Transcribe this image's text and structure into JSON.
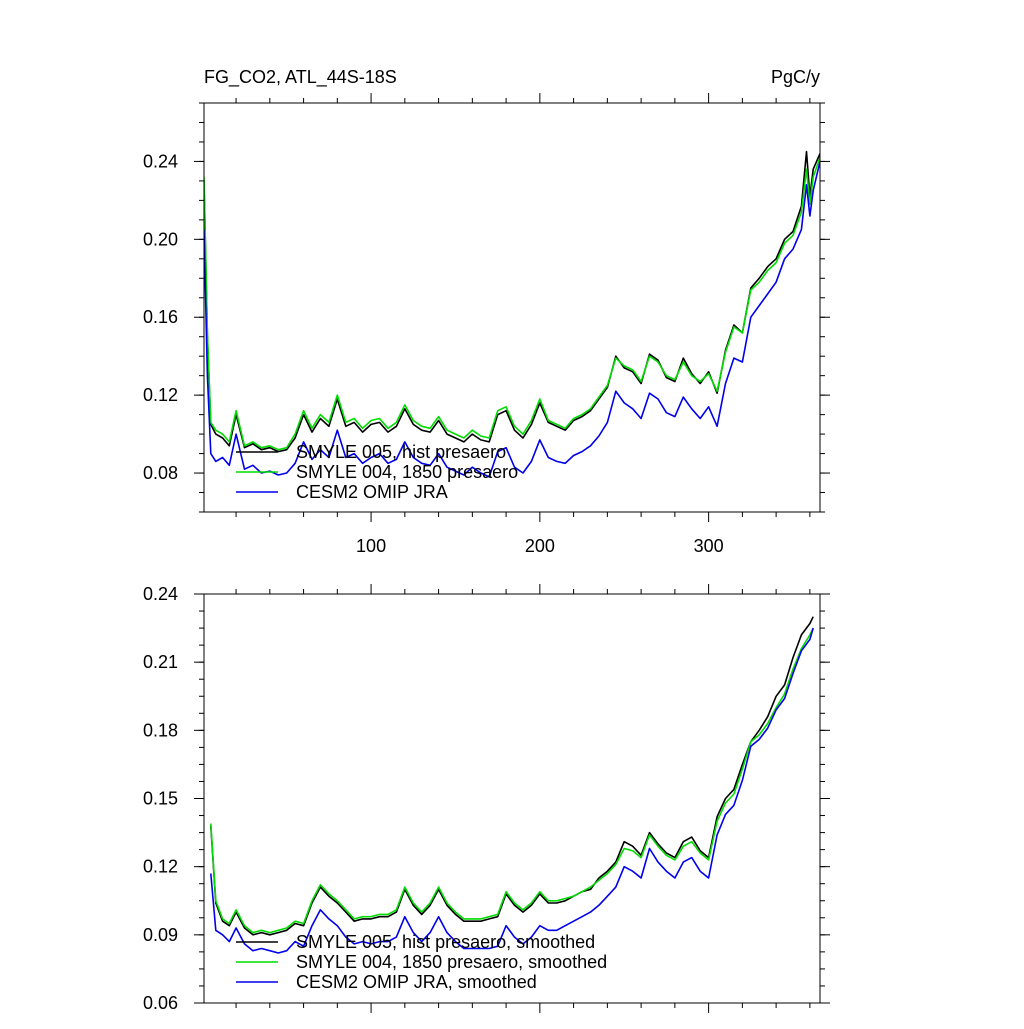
{
  "chart_data": [
    {
      "type": "line",
      "title": "FG_CO2, ATL_44S-18S",
      "units": "PgC/y",
      "xlim": [
        1,
        366
      ],
      "ylim": [
        0.06,
        0.27
      ],
      "x_ticks": [
        100,
        200,
        300
      ],
      "y_ticks": [
        0.08,
        0.12,
        0.16,
        0.2,
        0.24
      ],
      "y_tick_labels": [
        "0.08",
        "0.12",
        "0.16",
        "0.20",
        "0.24"
      ],
      "legend_position": "bottom-left",
      "series": [
        {
          "name": "SMYLE 005, hist presaero",
          "color": "#000000",
          "x": [
            1,
            3,
            5,
            8,
            12,
            16,
            20,
            25,
            30,
            35,
            40,
            45,
            50,
            55,
            60,
            65,
            70,
            75,
            80,
            85,
            90,
            95,
            100,
            105,
            110,
            115,
            120,
            125,
            130,
            135,
            140,
            145,
            150,
            155,
            160,
            165,
            170,
            175,
            180,
            185,
            190,
            195,
            200,
            205,
            210,
            215,
            220,
            225,
            230,
            235,
            240,
            245,
            250,
            255,
            260,
            265,
            270,
            275,
            280,
            285,
            290,
            295,
            300,
            305,
            310,
            315,
            320,
            325,
            330,
            335,
            340,
            345,
            350,
            355,
            358,
            360,
            362,
            366
          ],
          "values": [
            0.23,
            0.15,
            0.105,
            0.1,
            0.098,
            0.094,
            0.11,
            0.093,
            0.095,
            0.092,
            0.093,
            0.091,
            0.092,
            0.098,
            0.11,
            0.101,
            0.108,
            0.104,
            0.118,
            0.104,
            0.106,
            0.101,
            0.105,
            0.106,
            0.101,
            0.104,
            0.113,
            0.105,
            0.102,
            0.101,
            0.107,
            0.1,
            0.098,
            0.096,
            0.1,
            0.097,
            0.096,
            0.11,
            0.112,
            0.102,
            0.098,
            0.105,
            0.116,
            0.106,
            0.104,
            0.102,
            0.107,
            0.109,
            0.112,
            0.118,
            0.124,
            0.14,
            0.134,
            0.132,
            0.126,
            0.141,
            0.138,
            0.129,
            0.127,
            0.139,
            0.131,
            0.126,
            0.132,
            0.121,
            0.143,
            0.156,
            0.152,
            0.175,
            0.18,
            0.186,
            0.19,
            0.2,
            0.204,
            0.217,
            0.245,
            0.222,
            0.236,
            0.244
          ]
        },
        {
          "name": "SMYLE 004, 1850 presaero",
          "color": "#00dd00",
          "x": [
            1,
            3,
            5,
            8,
            12,
            16,
            20,
            25,
            30,
            35,
            40,
            45,
            50,
            55,
            60,
            65,
            70,
            75,
            80,
            85,
            90,
            95,
            100,
            105,
            110,
            115,
            120,
            125,
            130,
            135,
            140,
            145,
            150,
            155,
            160,
            165,
            170,
            175,
            180,
            185,
            190,
            195,
            200,
            205,
            210,
            215,
            220,
            225,
            230,
            235,
            240,
            245,
            250,
            255,
            260,
            265,
            270,
            275,
            280,
            285,
            290,
            295,
            300,
            305,
            310,
            315,
            320,
            325,
            330,
            335,
            340,
            345,
            350,
            355,
            358,
            360,
            362,
            366
          ],
          "values": [
            0.232,
            0.152,
            0.106,
            0.102,
            0.1,
            0.096,
            0.112,
            0.094,
            0.096,
            0.093,
            0.094,
            0.092,
            0.093,
            0.1,
            0.112,
            0.103,
            0.11,
            0.106,
            0.12,
            0.106,
            0.108,
            0.103,
            0.107,
            0.108,
            0.103,
            0.106,
            0.115,
            0.107,
            0.104,
            0.103,
            0.109,
            0.102,
            0.1,
            0.098,
            0.102,
            0.099,
            0.098,
            0.112,
            0.114,
            0.104,
            0.1,
            0.107,
            0.118,
            0.107,
            0.105,
            0.103,
            0.108,
            0.11,
            0.113,
            0.119,
            0.125,
            0.139,
            0.135,
            0.133,
            0.127,
            0.14,
            0.137,
            0.13,
            0.128,
            0.137,
            0.13,
            0.127,
            0.131,
            0.122,
            0.142,
            0.155,
            0.152,
            0.174,
            0.178,
            0.184,
            0.188,
            0.198,
            0.202,
            0.214,
            0.236,
            0.218,
            0.232,
            0.242
          ]
        },
        {
          "name": "CESM2 OMIP JRA",
          "color": "#0000ee",
          "x": [
            1,
            3,
            5,
            8,
            12,
            16,
            20,
            25,
            30,
            35,
            40,
            45,
            50,
            55,
            60,
            65,
            70,
            75,
            80,
            85,
            90,
            95,
            100,
            105,
            110,
            115,
            120,
            125,
            130,
            135,
            140,
            145,
            150,
            155,
            160,
            165,
            170,
            175,
            180,
            185,
            190,
            195,
            200,
            205,
            210,
            215,
            220,
            225,
            230,
            235,
            240,
            245,
            250,
            255,
            260,
            265,
            270,
            275,
            280,
            285,
            290,
            295,
            300,
            305,
            310,
            315,
            320,
            325,
            330,
            335,
            340,
            345,
            350,
            355,
            358,
            360,
            362,
            366
          ],
          "values": [
            0.205,
            0.13,
            0.09,
            0.086,
            0.088,
            0.084,
            0.1,
            0.082,
            0.084,
            0.08,
            0.081,
            0.079,
            0.08,
            0.085,
            0.096,
            0.087,
            0.092,
            0.088,
            0.102,
            0.088,
            0.09,
            0.085,
            0.088,
            0.09,
            0.085,
            0.087,
            0.096,
            0.088,
            0.085,
            0.084,
            0.09,
            0.083,
            0.081,
            0.079,
            0.083,
            0.08,
            0.078,
            0.091,
            0.093,
            0.083,
            0.08,
            0.086,
            0.097,
            0.088,
            0.086,
            0.085,
            0.089,
            0.091,
            0.094,
            0.099,
            0.106,
            0.122,
            0.116,
            0.113,
            0.108,
            0.121,
            0.118,
            0.111,
            0.109,
            0.119,
            0.113,
            0.108,
            0.114,
            0.104,
            0.126,
            0.139,
            0.137,
            0.16,
            0.166,
            0.172,
            0.178,
            0.19,
            0.195,
            0.205,
            0.228,
            0.212,
            0.225,
            0.24
          ]
        }
      ]
    },
    {
      "type": "line",
      "title": "",
      "units": "",
      "xlim": [
        1,
        366
      ],
      "ylim": [
        0.06,
        0.24
      ],
      "x_ticks": [
        100,
        200,
        300
      ],
      "y_ticks": [
        0.06,
        0.09,
        0.12,
        0.15,
        0.18,
        0.21,
        0.24
      ],
      "y_tick_labels": [
        "0.06",
        "0.09",
        "0.12",
        "0.15",
        "0.18",
        "0.21",
        "0.24"
      ],
      "legend_position": "bottom-left",
      "series": [
        {
          "name": "SMYLE 005, hist presaero, smoothed",
          "color": "#000000",
          "x": [
            5,
            8,
            12,
            16,
            20,
            25,
            30,
            35,
            40,
            45,
            50,
            55,
            60,
            65,
            70,
            75,
            80,
            85,
            90,
            95,
            100,
            105,
            110,
            115,
            120,
            125,
            130,
            135,
            140,
            145,
            150,
            155,
            160,
            165,
            170,
            175,
            180,
            185,
            190,
            195,
            200,
            205,
            210,
            215,
            220,
            225,
            230,
            235,
            240,
            245,
            250,
            255,
            260,
            265,
            270,
            275,
            280,
            285,
            290,
            295,
            300,
            305,
            310,
            315,
            320,
            325,
            330,
            335,
            340,
            345,
            350,
            355,
            360,
            362
          ],
          "values": [
            0.138,
            0.104,
            0.096,
            0.094,
            0.1,
            0.093,
            0.09,
            0.091,
            0.09,
            0.091,
            0.092,
            0.095,
            0.094,
            0.104,
            0.111,
            0.107,
            0.104,
            0.1,
            0.096,
            0.097,
            0.097,
            0.098,
            0.098,
            0.1,
            0.11,
            0.103,
            0.099,
            0.103,
            0.11,
            0.103,
            0.099,
            0.096,
            0.096,
            0.096,
            0.097,
            0.098,
            0.108,
            0.103,
            0.1,
            0.103,
            0.108,
            0.104,
            0.104,
            0.105,
            0.107,
            0.109,
            0.11,
            0.115,
            0.118,
            0.122,
            0.131,
            0.129,
            0.125,
            0.135,
            0.13,
            0.126,
            0.124,
            0.131,
            0.133,
            0.127,
            0.124,
            0.142,
            0.15,
            0.154,
            0.165,
            0.175,
            0.18,
            0.186,
            0.195,
            0.2,
            0.212,
            0.222,
            0.227,
            0.23
          ]
        },
        {
          "name": "SMYLE 004, 1850 presaero, smoothed",
          "color": "#00dd00",
          "x": [
            5,
            8,
            12,
            16,
            20,
            25,
            30,
            35,
            40,
            45,
            50,
            55,
            60,
            65,
            70,
            75,
            80,
            85,
            90,
            95,
            100,
            105,
            110,
            115,
            120,
            125,
            130,
            135,
            140,
            145,
            150,
            155,
            160,
            165,
            170,
            175,
            180,
            185,
            190,
            195,
            200,
            205,
            210,
            215,
            220,
            225,
            230,
            235,
            240,
            245,
            250,
            255,
            260,
            265,
            270,
            275,
            280,
            285,
            290,
            295,
            300,
            305,
            310,
            315,
            320,
            325,
            330,
            335,
            340,
            345,
            350,
            355,
            360,
            362
          ],
          "values": [
            0.139,
            0.105,
            0.097,
            0.095,
            0.101,
            0.094,
            0.091,
            0.092,
            0.091,
            0.092,
            0.093,
            0.096,
            0.095,
            0.105,
            0.112,
            0.108,
            0.105,
            0.101,
            0.097,
            0.098,
            0.098,
            0.099,
            0.099,
            0.101,
            0.111,
            0.104,
            0.1,
            0.104,
            0.111,
            0.104,
            0.1,
            0.097,
            0.097,
            0.097,
            0.098,
            0.099,
            0.109,
            0.104,
            0.101,
            0.104,
            0.109,
            0.105,
            0.105,
            0.106,
            0.107,
            0.109,
            0.111,
            0.114,
            0.117,
            0.121,
            0.128,
            0.127,
            0.124,
            0.134,
            0.129,
            0.125,
            0.123,
            0.129,
            0.131,
            0.126,
            0.123,
            0.14,
            0.148,
            0.152,
            0.163,
            0.175,
            0.178,
            0.183,
            0.19,
            0.196,
            0.207,
            0.216,
            0.222,
            0.225
          ]
        },
        {
          "name": "CESM2 OMIP JRA, smoothed",
          "color": "#0000ee",
          "x": [
            5,
            8,
            12,
            16,
            20,
            25,
            30,
            35,
            40,
            45,
            50,
            55,
            60,
            65,
            70,
            75,
            80,
            85,
            90,
            95,
            100,
            105,
            110,
            115,
            120,
            125,
            130,
            135,
            140,
            145,
            150,
            155,
            160,
            165,
            170,
            175,
            180,
            185,
            190,
            195,
            200,
            205,
            210,
            215,
            220,
            225,
            230,
            235,
            240,
            245,
            250,
            255,
            260,
            265,
            270,
            275,
            280,
            285,
            290,
            295,
            300,
            305,
            310,
            315,
            320,
            325,
            330,
            335,
            340,
            345,
            350,
            355,
            360,
            362
          ],
          "values": [
            0.117,
            0.092,
            0.09,
            0.087,
            0.093,
            0.086,
            0.083,
            0.084,
            0.083,
            0.082,
            0.083,
            0.087,
            0.085,
            0.094,
            0.101,
            0.097,
            0.094,
            0.089,
            0.086,
            0.087,
            0.086,
            0.087,
            0.087,
            0.089,
            0.098,
            0.091,
            0.087,
            0.091,
            0.098,
            0.091,
            0.087,
            0.084,
            0.084,
            0.084,
            0.084,
            0.085,
            0.094,
            0.089,
            0.086,
            0.089,
            0.094,
            0.092,
            0.092,
            0.094,
            0.096,
            0.098,
            0.1,
            0.103,
            0.107,
            0.111,
            0.12,
            0.118,
            0.115,
            0.128,
            0.122,
            0.118,
            0.115,
            0.122,
            0.124,
            0.118,
            0.115,
            0.134,
            0.143,
            0.147,
            0.158,
            0.173,
            0.176,
            0.181,
            0.189,
            0.194,
            0.205,
            0.215,
            0.22,
            0.225
          ]
        }
      ]
    }
  ]
}
